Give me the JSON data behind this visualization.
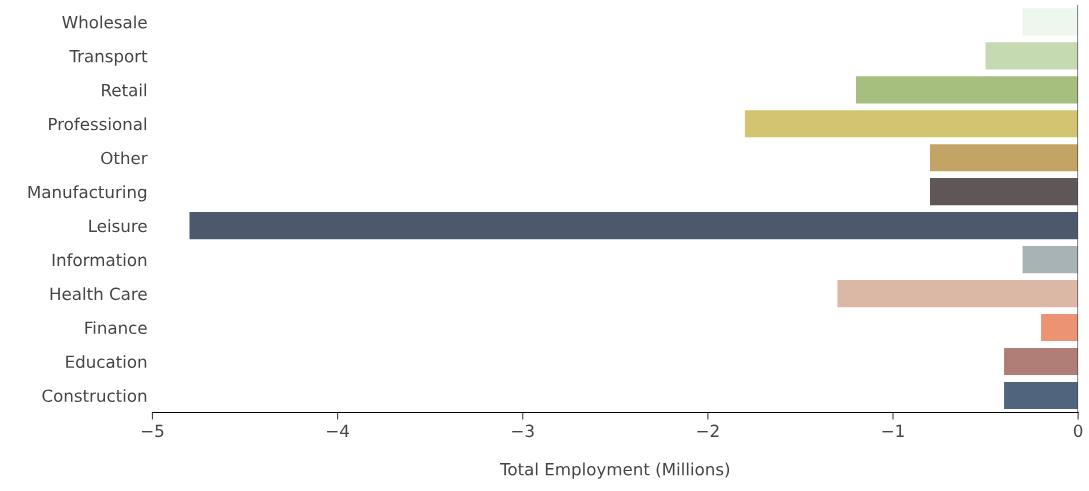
{
  "chart_data": {
    "type": "bar",
    "orientation": "horizontal",
    "xlabel": "Total Employment (Millions)",
    "categories": [
      "Wholesale",
      "Transport",
      "Retail",
      "Professional",
      "Other",
      "Manufacturing",
      "Leisure",
      "Information",
      "Health Care",
      "Finance",
      "Education",
      "Construction"
    ],
    "values": [
      -0.3,
      -0.5,
      -1.2,
      -1.8,
      -0.8,
      -0.8,
      -4.8,
      -0.3,
      -1.3,
      -0.2,
      -0.4,
      -0.4
    ],
    "colors": [
      "#eef7ee",
      "#c5dab0",
      "#a6bf7e",
      "#d2c470",
      "#c4a465",
      "#5e5657",
      "#4d586d",
      "#a7b3b5",
      "#dbb8a6",
      "#ec9373",
      "#b07e77",
      "#50647e"
    ],
    "xlim": [
      -5,
      0
    ],
    "xticks": [
      {
        "value": -5,
        "label": "−5"
      },
      {
        "value": -4,
        "label": "−4"
      },
      {
        "value": -3,
        "label": "−3"
      },
      {
        "value": -2,
        "label": "−2"
      },
      {
        "value": -1,
        "label": "−1"
      },
      0
    ],
    "grid": false,
    "legend": false
  }
}
